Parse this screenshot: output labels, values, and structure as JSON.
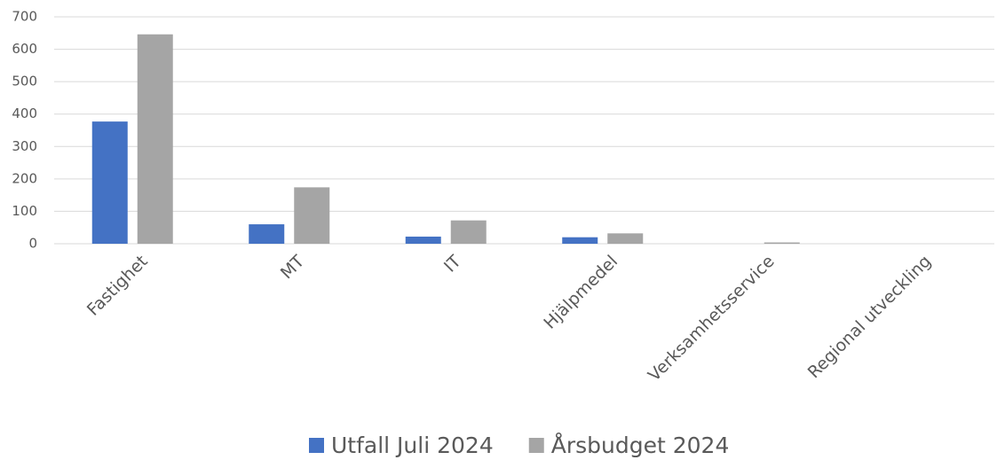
{
  "chart_data": {
    "type": "bar",
    "categories": [
      "Fastighet",
      "MT",
      "IT",
      "Hjälpmedel",
      "Verksamhetsservice",
      "Regional utveckling"
    ],
    "series": [
      {
        "name": "Utfall Juli 2024",
        "color": "#4472c4",
        "values": [
          377,
          60,
          22,
          20,
          0,
          0
        ]
      },
      {
        "name": "Årsbudget 2024",
        "color": "#a5a5a5",
        "values": [
          646,
          174,
          72,
          32,
          4,
          0
        ]
      }
    ],
    "ylim": [
      0,
      700
    ],
    "yticks": [
      0,
      100,
      200,
      300,
      400,
      500,
      600,
      700
    ],
    "grid": true,
    "legend": "bottom"
  }
}
